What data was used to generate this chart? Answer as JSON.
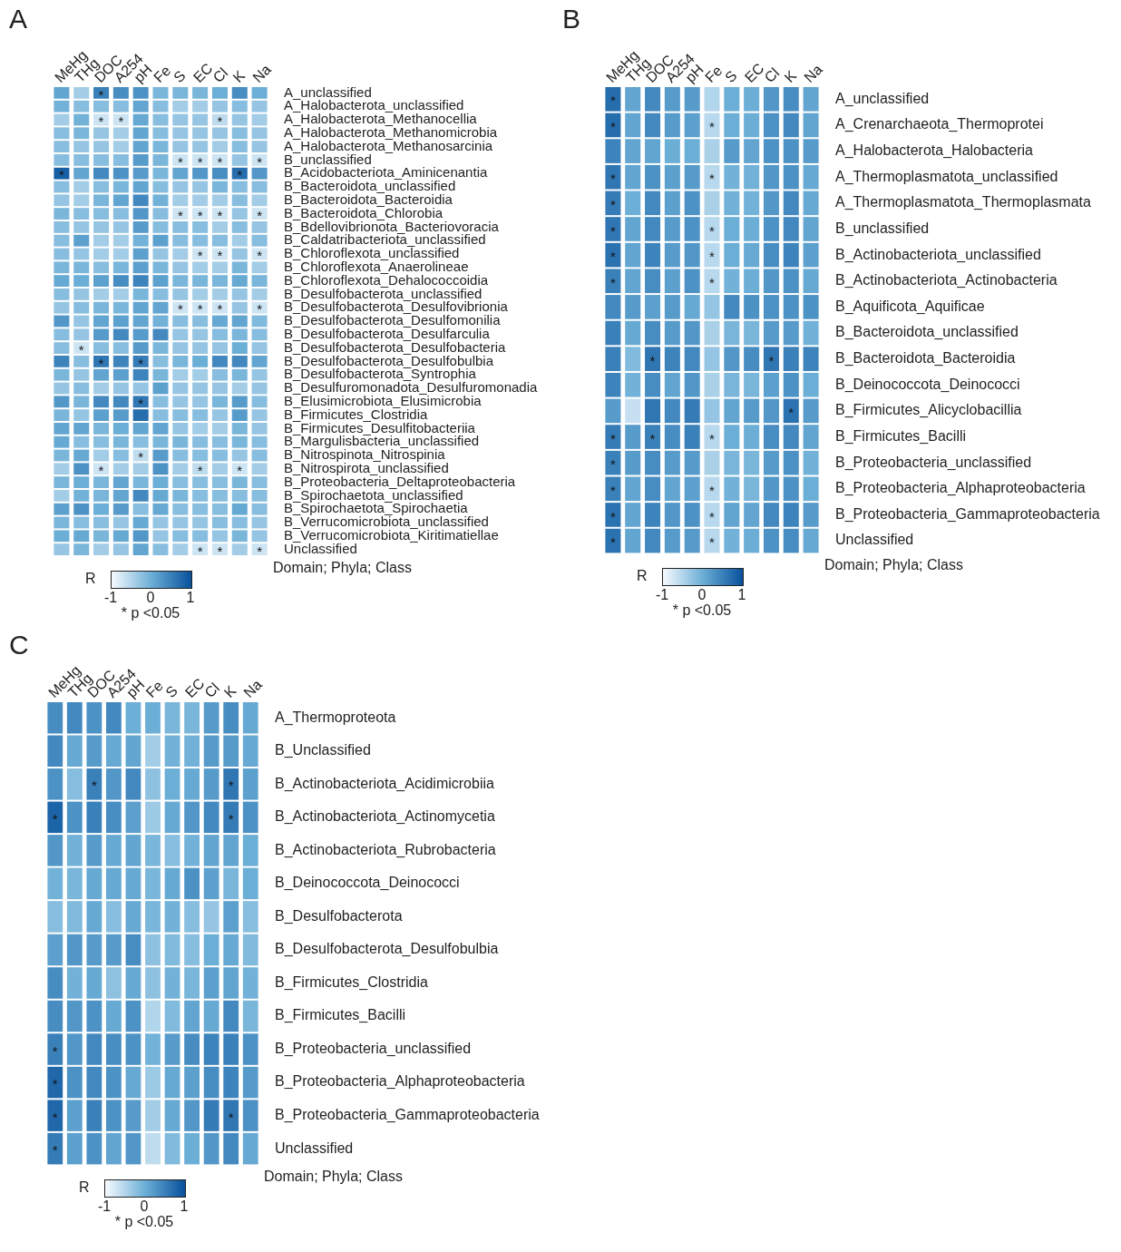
{
  "chart_data": [
    {
      "type": "heatmap",
      "title": "A",
      "ylabel": "Domain; Phyla; Class",
      "clabel": "R",
      "clim": [
        -1,
        1
      ],
      "cticks": [
        -1,
        0,
        1
      ],
      "annotations": [
        "* p <0.05"
      ],
      "categories": [
        "MeHg",
        "THg",
        "DOC",
        "A254",
        "pH",
        "Fe",
        "S",
        "EC",
        "Cl",
        "K",
        "Na"
      ],
      "y_categories": [
        "A_unclassified",
        "A_Halobacterota_unclassified",
        "A_Halobacterota_Methanocellia",
        "A_Halobacterota_Methanomicrobia",
        "A_Halobacterota_Methanosarcinia",
        "B_unclassified",
        "B_Acidobacteriota_Aminicenantia",
        "B_Bacteroidota_unclassified",
        "B_Bacteroidota_Bacteroidia",
        "B_Bacteroidota_Chlorobia",
        "B_Bdellovibrionota_Bacteriovoracia",
        "B_Caldatribacteriota_unclassified",
        "B_Chloroflexota_unclassified",
        "B_Chloroflexota_Anaerolineae",
        "B_Chloroflexota_Dehalococcoidia",
        "B_Desulfobacterota_unclassified",
        "B_Desulfobacterota_Desulfovibrionia",
        "B_Desulfobacterota_Desulfomonilia",
        "B_Desulfobacterota_Desulfarculia",
        "B_Desulfobacterota_Desulfobacteria",
        "B_Desulfobacterota_Desulfobulbia",
        "B_Desulfobacterota_Syntrophia",
        "B_Desulfuromonadota_Desulfuromonadia",
        "B_Elusimicrobiota_Elusimicrobia",
        "B_Firmicutes_Clostridia",
        "B_Firmicutes_Desulfitobacteriia",
        "B_Margulisbacteria_unclassified",
        "B_Nitrospinota_Nitrospinia",
        "B_Nitrospirota_unclassified",
        "B_Proteobacteria_Deltaproteobacteria",
        "B_Spirochaetota_unclassified",
        "B_Spirochaetota_Spirochaetia",
        "B_Verrucomicrobiota_unclassified",
        "B_Verrucomicrobiota_Kiritimatiellae",
        "Unclassified"
      ],
      "cells": [
        [
          0.1,
          -0.4,
          0.5,
          0.35,
          0.3,
          -0.1,
          -0.1,
          -0.1,
          0.0,
          0.35,
          0.0
        ],
        [
          -0.05,
          -0.2,
          -0.2,
          -0.2,
          0.1,
          -0.2,
          -0.4,
          -0.4,
          -0.3,
          -0.2,
          -0.3
        ],
        [
          -0.4,
          -0.05,
          -0.7,
          -0.7,
          0.05,
          -0.2,
          -0.3,
          -0.3,
          -0.6,
          -0.3,
          -0.4
        ],
        [
          -0.2,
          -0.1,
          -0.3,
          -0.4,
          0.1,
          -0.2,
          -0.3,
          -0.3,
          -0.3,
          -0.2,
          -0.3
        ],
        [
          -0.2,
          -0.3,
          -0.3,
          -0.4,
          0.1,
          -0.1,
          -0.3,
          -0.3,
          -0.4,
          -0.2,
          -0.3
        ],
        [
          -0.2,
          -0.2,
          -0.2,
          -0.2,
          0.2,
          -0.1,
          -0.7,
          -0.7,
          -0.7,
          -0.3,
          -0.7
        ],
        [
          0.85,
          0.1,
          0.4,
          0.3,
          0.2,
          -0.1,
          0.1,
          0.25,
          0.35,
          0.7,
          0.25
        ],
        [
          -0.2,
          -0.4,
          -0.2,
          -0.1,
          0.1,
          -0.2,
          -0.3,
          -0.3,
          -0.1,
          -0.2,
          -0.2
        ],
        [
          -0.3,
          -0.4,
          -0.1,
          0.1,
          0.4,
          -0.05,
          -0.4,
          -0.4,
          -0.4,
          -0.2,
          -0.4
        ],
        [
          -0.1,
          -0.2,
          -0.2,
          -0.2,
          0.25,
          -0.2,
          -0.7,
          -0.7,
          -0.7,
          -0.3,
          -0.7
        ],
        [
          -0.2,
          -0.3,
          -0.3,
          -0.3,
          0.2,
          -0.2,
          -0.2,
          -0.2,
          -0.4,
          -0.2,
          -0.3
        ],
        [
          -0.2,
          0.15,
          -0.4,
          -0.4,
          -0.05,
          0.15,
          -0.2,
          -0.2,
          -0.2,
          -0.4,
          -0.2
        ],
        [
          -0.2,
          -0.3,
          -0.4,
          -0.4,
          0.15,
          -0.3,
          -0.4,
          -0.7,
          -0.7,
          -0.3,
          -0.7
        ],
        [
          -0.1,
          -0.1,
          -0.2,
          -0.1,
          0.15,
          -0.1,
          -0.3,
          -0.4,
          -0.4,
          -0.1,
          -0.4
        ],
        [
          0.05,
          0.0,
          0.15,
          0.35,
          0.45,
          0.15,
          -0.1,
          -0.1,
          -0.1,
          0.05,
          -0.1
        ],
        [
          -0.2,
          -0.3,
          -0.4,
          -0.4,
          -0.1,
          -0.2,
          -0.3,
          -0.4,
          -0.4,
          -0.3,
          -0.4
        ],
        [
          -0.3,
          -0.2,
          -0.1,
          -0.1,
          0.1,
          0.1,
          -0.7,
          -0.7,
          -0.7,
          -0.3,
          -0.7
        ],
        [
          0.25,
          -0.3,
          0.1,
          0.15,
          0.1,
          -0.05,
          -0.2,
          -0.2,
          0.05,
          0.1,
          -0.15
        ],
        [
          -0.2,
          -0.3,
          0.2,
          0.4,
          0.2,
          0.4,
          -0.3,
          -0.3,
          -0.2,
          -0.1,
          -0.2
        ],
        [
          -0.2,
          -0.7,
          -0.2,
          -0.2,
          0.2,
          -0.1,
          -0.3,
          -0.3,
          -0.3,
          0.0,
          -0.3
        ],
        [
          0.45,
          -0.2,
          0.6,
          0.45,
          0.55,
          -0.2,
          -0.1,
          0.0,
          0.4,
          0.4,
          0.1
        ],
        [
          -0.1,
          -0.3,
          0.1,
          0.15,
          0.45,
          -0.1,
          -0.4,
          -0.4,
          -0.2,
          -0.1,
          -0.3
        ],
        [
          -0.3,
          -0.2,
          -0.4,
          -0.3,
          -0.3,
          0.15,
          -0.3,
          -0.3,
          -0.3,
          -0.4,
          -0.3
        ],
        [
          0.25,
          -0.1,
          0.4,
          0.4,
          0.6,
          -0.2,
          -0.3,
          -0.3,
          -0.1,
          0.2,
          -0.2
        ],
        [
          -0.1,
          -0.3,
          0.15,
          0.2,
          0.7,
          -0.2,
          -0.2,
          -0.2,
          -0.3,
          0.2,
          -0.3
        ],
        [
          0.1,
          0.1,
          -0.1,
          0.0,
          0.1,
          0.1,
          -0.3,
          -0.4,
          -0.4,
          -0.1,
          -0.3
        ],
        [
          0.05,
          -0.2,
          -0.2,
          -0.1,
          -0.2,
          -0.1,
          -0.1,
          -0.2,
          -0.2,
          -0.1,
          -0.2
        ],
        [
          -0.1,
          0.05,
          -0.4,
          -0.2,
          -0.6,
          0.2,
          -0.2,
          -0.2,
          -0.2,
          -0.3,
          -0.2
        ],
        [
          -0.4,
          0.3,
          -0.7,
          -0.4,
          -0.4,
          0.3,
          -0.4,
          -0.6,
          -0.4,
          -0.7,
          -0.4
        ],
        [
          -0.1,
          0.0,
          -0.1,
          0.1,
          -0.1,
          0.0,
          -0.2,
          -0.2,
          -0.2,
          -0.1,
          -0.2
        ],
        [
          -0.4,
          -0.05,
          -0.1,
          0.1,
          0.4,
          0.05,
          -0.1,
          -0.2,
          -0.2,
          -0.2,
          -0.2
        ],
        [
          0.15,
          0.3,
          0.0,
          0.2,
          -0.2,
          0.05,
          -0.2,
          -0.2,
          -0.2,
          0.05,
          -0.2
        ],
        [
          -0.1,
          -0.2,
          -0.2,
          -0.3,
          0.05,
          -0.3,
          -0.3,
          -0.3,
          -0.2,
          -0.2,
          -0.3
        ],
        [
          0.0,
          0.05,
          -0.1,
          0.05,
          0.25,
          -0.3,
          -0.2,
          -0.2,
          -0.3,
          -0.1,
          -0.3
        ],
        [
          -0.3,
          -0.1,
          -0.4,
          -0.3,
          0.1,
          -0.2,
          -0.4,
          -0.7,
          -0.7,
          -0.4,
          -0.7
        ]
      ],
      "cell_labels": [
        [
          null,
          null,
          "*",
          null,
          null,
          null,
          null,
          null,
          null,
          null,
          null
        ],
        [
          null,
          null,
          null,
          null,
          null,
          null,
          null,
          null,
          null,
          null,
          null
        ],
        [
          null,
          null,
          "*",
          "*",
          null,
          null,
          null,
          null,
          "*",
          null,
          null
        ],
        [
          null,
          null,
          null,
          null,
          null,
          null,
          null,
          null,
          null,
          null,
          null
        ],
        [
          null,
          null,
          null,
          null,
          null,
          null,
          null,
          null,
          null,
          null,
          null
        ],
        [
          null,
          null,
          null,
          null,
          null,
          null,
          "*",
          "*",
          "*",
          null,
          "*"
        ],
        [
          "*",
          null,
          null,
          null,
          null,
          null,
          null,
          null,
          null,
          "*",
          null
        ],
        [
          null,
          null,
          null,
          null,
          null,
          null,
          null,
          null,
          null,
          null,
          null
        ],
        [
          null,
          null,
          null,
          null,
          null,
          null,
          null,
          null,
          null,
          null,
          null
        ],
        [
          null,
          null,
          null,
          null,
          null,
          null,
          "*",
          "*",
          "*",
          null,
          "*"
        ],
        [
          null,
          null,
          null,
          null,
          null,
          null,
          null,
          null,
          null,
          null,
          null
        ],
        [
          null,
          null,
          null,
          null,
          null,
          null,
          null,
          null,
          null,
          null,
          null
        ],
        [
          null,
          null,
          null,
          null,
          null,
          null,
          null,
          "*",
          "*",
          null,
          "*"
        ],
        [
          null,
          null,
          null,
          null,
          null,
          null,
          null,
          null,
          null,
          null,
          null
        ],
        [
          null,
          null,
          null,
          null,
          null,
          null,
          null,
          null,
          null,
          null,
          null
        ],
        [
          null,
          null,
          null,
          null,
          null,
          null,
          null,
          null,
          null,
          null,
          null
        ],
        [
          null,
          null,
          null,
          null,
          null,
          null,
          "*",
          "*",
          "*",
          null,
          "*"
        ],
        [
          null,
          null,
          null,
          null,
          null,
          null,
          null,
          null,
          null,
          null,
          null
        ],
        [
          null,
          null,
          null,
          null,
          null,
          null,
          null,
          null,
          null,
          null,
          null
        ],
        [
          null,
          "*",
          null,
          null,
          null,
          null,
          null,
          null,
          null,
          null,
          null
        ],
        [
          null,
          null,
          "*",
          null,
          "*",
          null,
          null,
          null,
          null,
          null,
          null
        ],
        [
          null,
          null,
          null,
          null,
          null,
          null,
          null,
          null,
          null,
          null,
          null
        ],
        [
          null,
          null,
          null,
          null,
          null,
          null,
          null,
          null,
          null,
          null,
          null
        ],
        [
          null,
          null,
          null,
          null,
          "*",
          null,
          null,
          null,
          null,
          null,
          null
        ],
        [
          null,
          null,
          null,
          null,
          null,
          null,
          null,
          null,
          null,
          null,
          null
        ],
        [
          null,
          null,
          null,
          null,
          null,
          null,
          null,
          null,
          null,
          null,
          null
        ],
        [
          null,
          null,
          null,
          null,
          null,
          null,
          null,
          null,
          null,
          null,
          null
        ],
        [
          null,
          null,
          null,
          null,
          "*",
          null,
          null,
          null,
          null,
          null,
          null
        ],
        [
          null,
          null,
          "*",
          null,
          null,
          null,
          null,
          "*",
          null,
          "*",
          null
        ],
        [
          null,
          null,
          null,
          null,
          null,
          null,
          null,
          null,
          null,
          null,
          null
        ],
        [
          null,
          null,
          null,
          null,
          null,
          null,
          null,
          null,
          null,
          null,
          null
        ],
        [
          null,
          null,
          null,
          null,
          null,
          null,
          null,
          null,
          null,
          null,
          null
        ],
        [
          null,
          null,
          null,
          null,
          null,
          null,
          null,
          null,
          null,
          null,
          null
        ],
        [
          null,
          null,
          null,
          null,
          null,
          null,
          null,
          null,
          null,
          null,
          null
        ],
        [
          null,
          null,
          null,
          null,
          null,
          null,
          null,
          "*",
          "*",
          null,
          "*"
        ]
      ]
    },
    {
      "type": "heatmap",
      "title": "B",
      "ylabel": "Domain; Phyla; Class",
      "clabel": "R",
      "clim": [
        -1,
        1
      ],
      "cticks": [
        -1,
        0,
        1
      ],
      "annotations": [
        "* p <0.05"
      ],
      "categories": [
        "MeHg",
        "THg",
        "DOC",
        "A254",
        "pH",
        "Fe",
        "S",
        "EC",
        "Cl",
        "K",
        "Na"
      ],
      "y_categories": [
        "A_unclassified",
        "A_Crenarchaeota_Thermoprotei",
        "A_Halobacterota_Halobacteria",
        "A_Thermoplasmatota_unclassified",
        "A_Thermoplasmatota_Thermoplasmata",
        "B_unclassified",
        "B_Actinobacteriota_unclassified",
        "B_Actinobacteriota_Actinobacteria",
        "B_Aquificota_Aquificae",
        "B_Bacteroidota_unclassified",
        "B_Bacteroidota_Bacteroidia",
        "B_Deinococcota_Deinococci",
        "B_Firmicutes_Alicyclobacillia",
        "B_Firmicutes_Bacilli",
        "B_Proteobacteria_unclassified",
        "B_Proteobacteria_Alphaproteobacteria",
        "B_Proteobacteria_Gammaproteobacteria",
        "Unclassified"
      ],
      "cells": [
        [
          0.7,
          0.1,
          0.4,
          0.2,
          0.2,
          -0.5,
          0.0,
          0.0,
          0.25,
          0.35,
          0.1
        ],
        [
          0.7,
          0.1,
          0.4,
          0.2,
          0.15,
          -0.55,
          0.0,
          0.0,
          0.3,
          0.4,
          0.1
        ],
        [
          0.45,
          0.1,
          0.1,
          0.0,
          0.0,
          -0.45,
          0.2,
          0.1,
          0.3,
          0.3,
          0.2
        ],
        [
          0.6,
          0.1,
          0.3,
          0.15,
          0.2,
          -0.55,
          -0.05,
          -0.05,
          0.25,
          0.3,
          0.05
        ],
        [
          0.55,
          0.0,
          0.4,
          0.15,
          0.3,
          -0.45,
          -0.05,
          -0.05,
          0.25,
          0.4,
          0.05
        ],
        [
          0.6,
          0.1,
          0.4,
          0.2,
          0.3,
          -0.55,
          0.0,
          0.0,
          0.3,
          0.4,
          0.1
        ],
        [
          0.65,
          0.1,
          0.45,
          0.2,
          0.25,
          -0.55,
          0.0,
          0.05,
          0.35,
          0.45,
          0.15
        ],
        [
          0.5,
          0.1,
          0.35,
          0.15,
          0.3,
          -0.55,
          -0.05,
          0.0,
          0.25,
          0.3,
          0.05
        ],
        [
          0.4,
          0.2,
          0.15,
          0.2,
          0.05,
          -0.3,
          0.4,
          0.3,
          0.3,
          0.3,
          0.3
        ],
        [
          0.5,
          0.05,
          0.35,
          0.2,
          0.25,
          -0.45,
          -0.1,
          -0.1,
          0.2,
          0.2,
          -0.05
        ],
        [
          0.5,
          -0.15,
          0.6,
          0.45,
          0.4,
          -0.3,
          0.25,
          0.35,
          0.6,
          0.5,
          0.45
        ],
        [
          0.45,
          -0.05,
          0.35,
          0.1,
          0.25,
          -0.45,
          -0.1,
          -0.1,
          0.15,
          0.3,
          0.0
        ],
        [
          0.2,
          -0.65,
          0.6,
          0.4,
          0.55,
          -0.3,
          0.1,
          0.2,
          0.25,
          0.65,
          0.2
        ],
        [
          0.55,
          0.2,
          0.5,
          0.35,
          0.5,
          -0.55,
          0.0,
          0.0,
          0.35,
          0.4,
          0.1
        ],
        [
          0.5,
          0.2,
          0.35,
          0.2,
          0.2,
          -0.45,
          -0.1,
          -0.1,
          0.2,
          0.3,
          -0.05
        ],
        [
          0.5,
          0.1,
          0.35,
          0.1,
          0.15,
          -0.55,
          -0.05,
          -0.1,
          0.25,
          0.3,
          0.0
        ],
        [
          0.65,
          0.1,
          0.45,
          0.25,
          0.3,
          -0.55,
          0.1,
          0.1,
          0.4,
          0.45,
          0.2
        ],
        [
          0.65,
          0.1,
          0.4,
          0.2,
          0.2,
          -0.55,
          -0.05,
          0.0,
          0.3,
          0.35,
          0.05
        ]
      ],
      "cell_labels": [
        [
          "*",
          null,
          null,
          null,
          null,
          null,
          null,
          null,
          null,
          null,
          null
        ],
        [
          "*",
          null,
          null,
          null,
          null,
          "*",
          null,
          null,
          null,
          null,
          null
        ],
        [
          null,
          null,
          null,
          null,
          null,
          null,
          null,
          null,
          null,
          null,
          null
        ],
        [
          "*",
          null,
          null,
          null,
          null,
          "*",
          null,
          null,
          null,
          null,
          null
        ],
        [
          "*",
          null,
          null,
          null,
          null,
          null,
          null,
          null,
          null,
          null,
          null
        ],
        [
          "*",
          null,
          null,
          null,
          null,
          "*",
          null,
          null,
          null,
          null,
          null
        ],
        [
          "*",
          null,
          null,
          null,
          null,
          "*",
          null,
          null,
          null,
          null,
          null
        ],
        [
          "*",
          null,
          null,
          null,
          null,
          "*",
          null,
          null,
          null,
          null,
          null
        ],
        [
          null,
          null,
          null,
          null,
          null,
          null,
          null,
          null,
          null,
          null,
          null
        ],
        [
          null,
          null,
          null,
          null,
          null,
          null,
          null,
          null,
          null,
          null,
          null
        ],
        [
          null,
          null,
          "*",
          null,
          null,
          null,
          null,
          null,
          "*",
          null,
          null
        ],
        [
          null,
          null,
          null,
          null,
          null,
          null,
          null,
          null,
          null,
          null,
          null
        ],
        [
          null,
          null,
          null,
          null,
          null,
          null,
          null,
          null,
          null,
          "*",
          null
        ],
        [
          "*",
          null,
          "*",
          null,
          null,
          "*",
          null,
          null,
          null,
          null,
          null
        ],
        [
          "*",
          null,
          null,
          null,
          null,
          null,
          null,
          null,
          null,
          null,
          null
        ],
        [
          "*",
          null,
          null,
          null,
          null,
          "*",
          null,
          null,
          null,
          null,
          null
        ],
        [
          "*",
          null,
          null,
          null,
          null,
          "*",
          null,
          null,
          null,
          null,
          null
        ],
        [
          "*",
          null,
          null,
          null,
          null,
          "*",
          null,
          null,
          null,
          null,
          null
        ]
      ]
    },
    {
      "type": "heatmap",
      "title": "C",
      "ylabel": "Domain; Phyla; Class",
      "clabel": "R",
      "clim": [
        -1,
        1
      ],
      "cticks": [
        -1,
        0,
        1
      ],
      "annotations": [
        "* p <0.05"
      ],
      "categories": [
        "MeHg",
        "THg",
        "DOC",
        "A254",
        "pH",
        "Fe",
        "S",
        "EC",
        "Cl",
        "K",
        "Na"
      ],
      "y_categories": [
        "A_Thermoproteota",
        "B_Unclassified",
        "B_Actinobacteriota_Acidimicrobiia",
        "B_Actinobacteriota_Actinomycetia",
        "B_Actinobacteriota_Rubrobacteria",
        "B_Deinococcota_Deinococci",
        "B_Desulfobacterota",
        "B_Desulfobacterota_Desulfobulbia",
        "B_Firmicutes_Clostridia",
        "B_Firmicutes_Bacilli",
        "B_Proteobacteria_unclassified",
        "B_Proteobacteria_Alphaproteobacteria",
        "B_Proteobacteria_Gammaproteobacteria",
        "Unclassified"
      ],
      "cells": [
        [
          0.35,
          0.4,
          0.3,
          0.4,
          0.0,
          0.0,
          -0.1,
          -0.1,
          0.2,
          0.35,
          0.05
        ],
        [
          0.4,
          0.05,
          0.2,
          0.05,
          0.1,
          -0.4,
          -0.05,
          -0.05,
          0.2,
          0.2,
          0.05
        ],
        [
          0.3,
          -0.2,
          0.5,
          0.25,
          0.4,
          -0.25,
          0.0,
          0.05,
          0.2,
          0.6,
          0.15
        ],
        [
          0.8,
          0.3,
          0.5,
          0.35,
          0.15,
          -0.35,
          0.05,
          0.25,
          0.4,
          0.55,
          0.3
        ],
        [
          0.25,
          -0.05,
          0.2,
          0.05,
          0.1,
          -0.1,
          -0.2,
          -0.05,
          0.1,
          0.1,
          0.0
        ],
        [
          -0.05,
          -0.1,
          0.05,
          0.05,
          0.05,
          -0.1,
          0.05,
          0.3,
          0.15,
          -0.1,
          0.0
        ],
        [
          -0.2,
          -0.15,
          0.05,
          -0.2,
          0.05,
          -0.1,
          -0.05,
          -0.2,
          -0.3,
          0.15,
          -0.2
        ],
        [
          0.15,
          0.25,
          0.2,
          0.2,
          0.35,
          -0.25,
          -0.15,
          -0.2,
          0.0,
          0.05,
          -0.15
        ],
        [
          0.35,
          -0.05,
          0.05,
          -0.25,
          0.05,
          -0.25,
          -0.05,
          -0.1,
          0.15,
          0.1,
          -0.05
        ],
        [
          0.35,
          0.25,
          0.3,
          0.05,
          0.3,
          -0.5,
          -0.15,
          0.1,
          0.05,
          0.4,
          -0.1
        ],
        [
          0.5,
          0.25,
          0.4,
          0.35,
          0.3,
          -0.05,
          0.2,
          0.35,
          0.45,
          0.5,
          0.3
        ],
        [
          0.75,
          0.3,
          0.4,
          0.3,
          0.05,
          -0.35,
          0.05,
          0.15,
          0.35,
          0.45,
          0.2
        ],
        [
          0.75,
          0.15,
          0.5,
          0.3,
          0.2,
          -0.4,
          0.05,
          0.25,
          0.55,
          0.6,
          0.3
        ],
        [
          0.55,
          0.15,
          0.3,
          0.1,
          0.25,
          -0.6,
          -0.15,
          0.0,
          0.25,
          0.4,
          0.05
        ]
      ],
      "cell_labels": [
        [
          null,
          null,
          null,
          null,
          null,
          null,
          null,
          null,
          null,
          null,
          null
        ],
        [
          null,
          null,
          null,
          null,
          null,
          null,
          null,
          null,
          null,
          null,
          null
        ],
        [
          null,
          null,
          "*",
          null,
          null,
          null,
          null,
          null,
          null,
          "*",
          null
        ],
        [
          "*",
          null,
          null,
          null,
          null,
          null,
          null,
          null,
          null,
          "*",
          null
        ],
        [
          null,
          null,
          null,
          null,
          null,
          null,
          null,
          null,
          null,
          null,
          null
        ],
        [
          null,
          null,
          null,
          null,
          null,
          null,
          null,
          null,
          null,
          null,
          null
        ],
        [
          null,
          null,
          null,
          null,
          null,
          null,
          null,
          null,
          null,
          null,
          null
        ],
        [
          null,
          null,
          null,
          null,
          null,
          null,
          null,
          null,
          null,
          null,
          null
        ],
        [
          null,
          null,
          null,
          null,
          null,
          null,
          null,
          null,
          null,
          null,
          null
        ],
        [
          null,
          null,
          null,
          null,
          null,
          null,
          null,
          null,
          null,
          null,
          null
        ],
        [
          "*",
          null,
          null,
          null,
          null,
          null,
          null,
          null,
          null,
          null,
          null
        ],
        [
          "*",
          null,
          null,
          null,
          null,
          null,
          null,
          null,
          null,
          null,
          null
        ],
        [
          "*",
          null,
          null,
          null,
          null,
          null,
          null,
          null,
          null,
          "*",
          null
        ],
        [
          "*",
          null,
          null,
          null,
          null,
          null,
          null,
          null,
          null,
          null,
          null
        ]
      ]
    }
  ]
}
